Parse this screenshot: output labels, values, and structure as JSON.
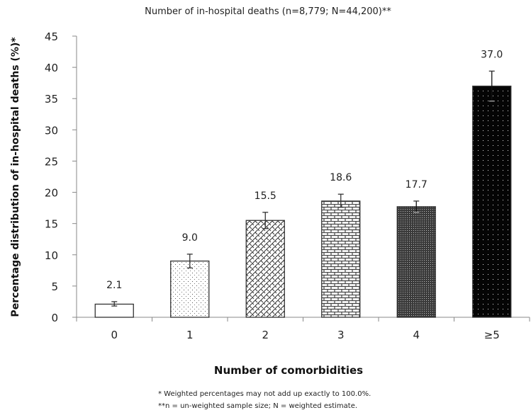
{
  "chart_data": {
    "type": "bar",
    "title": "Number of in-hospital deaths (n=8,779; N=44,200)**",
    "xlabel": "Number of comorbidities",
    "ylabel": "Percentage  distribution of in-hospital deaths (%)*",
    "categories": [
      "0",
      "1",
      "2",
      "3",
      "4",
      "≥5"
    ],
    "values": [
      2.1,
      9.0,
      15.5,
      18.6,
      17.7,
      37.0
    ],
    "value_labels": [
      "2.1",
      "9.0",
      "15.5",
      "18.6",
      "17.7",
      "37.0"
    ],
    "error_bars": [
      {
        "low": 1.8,
        "high": 2.5
      },
      {
        "low": 7.9,
        "high": 10.1
      },
      {
        "low": 14.2,
        "high": 16.8
      },
      {
        "low": 17.6,
        "high": 19.7
      },
      {
        "low": 16.8,
        "high": 18.6
      },
      {
        "low": 34.6,
        "high": 39.4
      }
    ],
    "patterns": [
      "white",
      "sparse-dots",
      "diagonal-weave",
      "brick",
      "dense-dots",
      "black-white-dots"
    ],
    "ylim": [
      0,
      45
    ],
    "yticks": [
      "0",
      "5",
      "10",
      "15",
      "20",
      "25",
      "30",
      "35",
      "40",
      "45"
    ],
    "ytick_values": [
      0,
      5,
      10,
      15,
      20,
      25,
      30,
      35,
      40,
      45
    ],
    "grid": false,
    "legend": "none",
    "footnotes": [
      "*  Weighted percentages may not add up exactly to 100.0%.",
      "**n = un-weighted sample size; N = weighted estimate."
    ]
  },
  "colors": {
    "axis": "#888888",
    "bar_edge": "#333333",
    "text": "#222222"
  }
}
